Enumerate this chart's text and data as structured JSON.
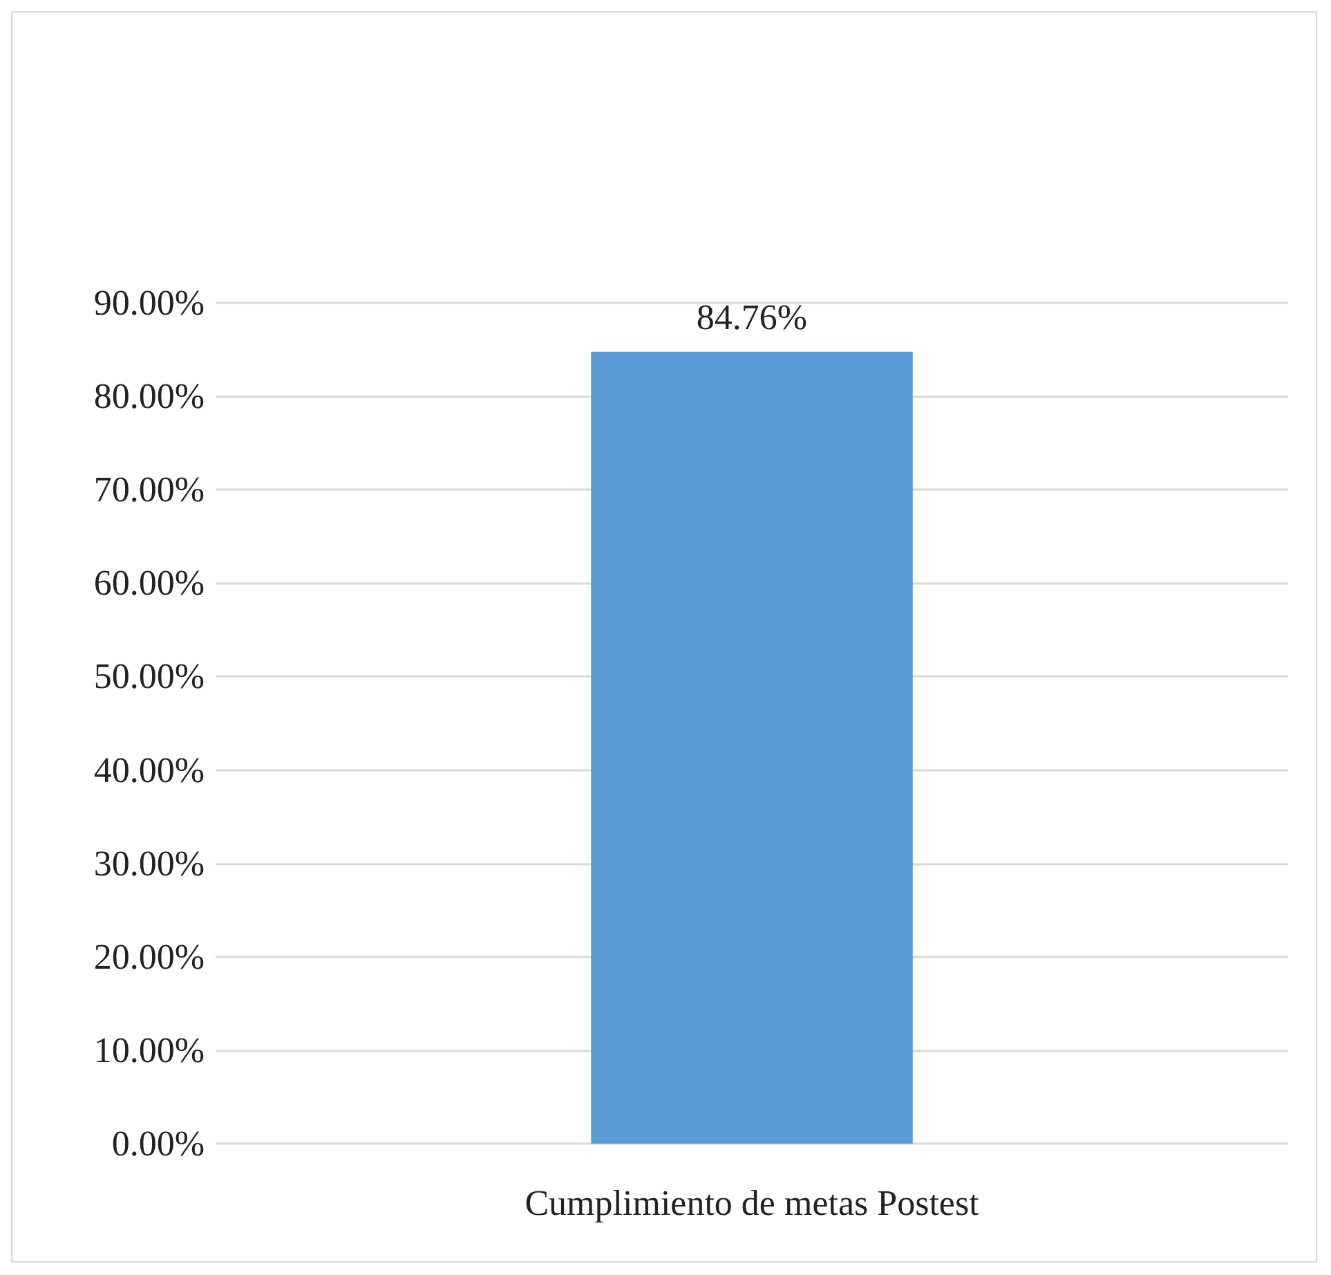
{
  "chart_data": {
    "type": "bar",
    "categories": [
      "Cumplimiento de metas Postest"
    ],
    "series": [
      {
        "color": "#5b9bd5",
        "values": [
          84.76
        ],
        "value_labels": [
          "84.76%"
        ]
      }
    ],
    "ylim": [
      0,
      90
    ],
    "yticks": [
      {
        "value": 0,
        "label": "0.00%"
      },
      {
        "value": 10,
        "label": "10.00%"
      },
      {
        "value": 20,
        "label": "20.00%"
      },
      {
        "value": 30,
        "label": "30.00%"
      },
      {
        "value": 40,
        "label": "40.00%"
      },
      {
        "value": 50,
        "label": "50.00%"
      },
      {
        "value": 60,
        "label": "60.00%"
      },
      {
        "value": 70,
        "label": "70.00%"
      },
      {
        "value": 80,
        "label": "80.00%"
      },
      {
        "value": 90,
        "label": "90.00%"
      }
    ],
    "grid": true
  }
}
